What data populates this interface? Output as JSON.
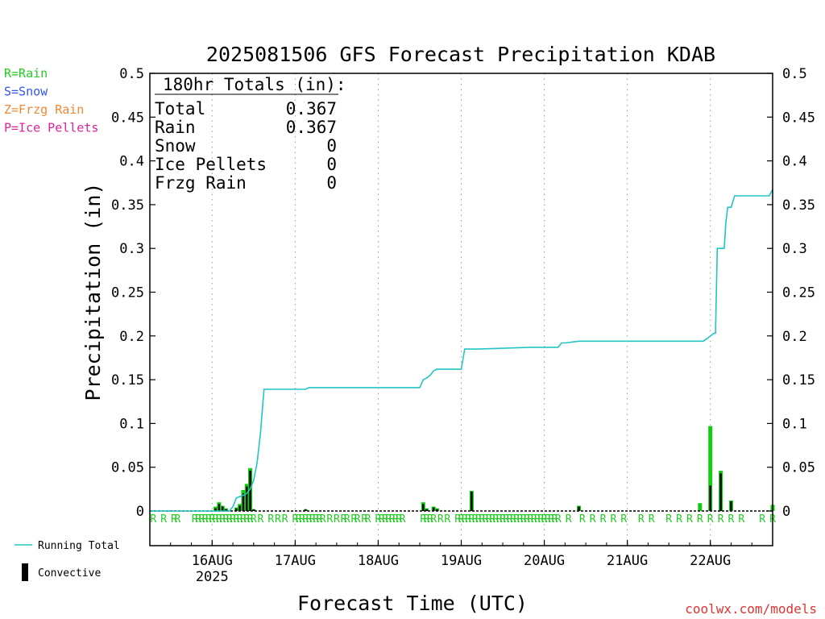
{
  "chart_data": {
    "type": "bar",
    "title": "2025081506 GFS Forecast Precipitation KDAB",
    "ylabel": "Precipitation (in)",
    "xlabel": "Forecast Time (UTC)",
    "ylim": [
      0,
      0.5
    ],
    "y_ticks": [
      "0",
      "0.05",
      "0.1",
      "0.15",
      "0.2",
      "0.25",
      "0.3",
      "0.35",
      "0.4",
      "0.45",
      "0.5"
    ],
    "x_range_hours": [
      0,
      180
    ],
    "x_tick_labels": [
      {
        "hour": 18,
        "label": "16AUG",
        "sublabel": "2025"
      },
      {
        "hour": 42,
        "label": "17AUG"
      },
      {
        "hour": 66,
        "label": "18AUG"
      },
      {
        "hour": 90,
        "label": "19AUG"
      },
      {
        "hour": 114,
        "label": "20AUG"
      },
      {
        "hour": 138,
        "label": "21AUG"
      },
      {
        "hour": 162,
        "label": "22AUG"
      }
    ],
    "grid": "vertical dotted at day boundaries",
    "ptype_legend": [
      {
        "label": "R=Rain",
        "color": "#22cc22"
      },
      {
        "label": "S=Snow",
        "color": "#3355ee"
      },
      {
        "label": "Z=Frzg Rain",
        "color": "#ee8833"
      },
      {
        "label": "P=Ice Pellets",
        "color": "#dd2299"
      }
    ],
    "totals": {
      "heading": "180hr Totals (in):",
      "rows": [
        {
          "label": "Total",
          "value": "0.367"
        },
        {
          "label": "Rain",
          "value": "0.367"
        },
        {
          "label": "Snow",
          "value": "0"
        },
        {
          "label": "Ice Pellets",
          "value": "0"
        },
        {
          "label": "Frzg Rain",
          "value": "0"
        }
      ]
    },
    "series": [
      {
        "name": "Running Total",
        "type": "line",
        "color": "#22c4c4",
        "x": [
          0,
          23,
          24,
          25,
          27,
          28,
          29,
          30,
          31,
          32,
          33,
          45,
          46,
          78,
          79,
          80,
          81,
          82,
          83,
          84,
          90,
          91,
          95,
          110,
          112,
          118,
          119,
          120,
          124,
          160,
          161,
          163,
          163.5,
          164,
          166,
          166.5,
          167,
          168,
          169,
          170,
          179,
          180
        ],
        "y": [
          0,
          0,
          0.005,
          0.015,
          0.018,
          0.02,
          0.025,
          0.035,
          0.055,
          0.09,
          0.139,
          0.139,
          0.141,
          0.141,
          0.15,
          0.152,
          0.155,
          0.16,
          0.162,
          0.162,
          0.162,
          0.185,
          0.185,
          0.187,
          0.187,
          0.187,
          0.192,
          0.192,
          0.194,
          0.194,
          0.197,
          0.203,
          0.203,
          0.3,
          0.3,
          0.33,
          0.347,
          0.347,
          0.36,
          0.36,
          0.36,
          0.367
        ]
      },
      {
        "name": "Total Precip",
        "type": "bar",
        "color": "#11cc11",
        "x": [
          19,
          20,
          21,
          22,
          25,
          26,
          27,
          28,
          29,
          30,
          45,
          79,
          80,
          82,
          83,
          93,
          124,
          159,
          162,
          165,
          168,
          180
        ],
        "y": [
          0.005,
          0.01,
          0.006,
          0.003,
          0.004,
          0.008,
          0.024,
          0.031,
          0.049,
          0.002,
          0.002,
          0.01,
          0.003,
          0.005,
          0.003,
          0.023,
          0.006,
          0.009,
          0.097,
          0.046,
          0.012,
          0.007
        ]
      },
      {
        "name": "Convective",
        "type": "bar",
        "color": "#000000",
        "x": [
          19,
          20,
          21,
          22,
          25,
          26,
          27,
          28,
          29,
          30,
          45,
          79,
          80,
          82,
          83,
          93,
          124,
          162,
          165,
          168
        ],
        "y": [
          0.003,
          0.008,
          0.005,
          0.002,
          0.003,
          0.006,
          0.02,
          0.028,
          0.046,
          0.002,
          0.002,
          0.008,
          0.002,
          0.004,
          0.002,
          0.022,
          0.005,
          0.029,
          0.043,
          0.011
        ]
      }
    ],
    "ptype_markers": {
      "symbol": "R",
      "x": [
        1,
        4,
        7,
        8,
        13,
        14,
        15,
        16,
        17,
        18,
        19,
        20,
        21,
        22,
        23,
        24,
        25,
        26,
        27,
        28,
        29,
        30,
        32,
        35,
        37,
        39,
        42,
        43,
        44,
        45,
        46,
        47,
        48,
        49,
        50,
        52,
        54,
        56,
        57,
        59,
        60,
        62,
        63,
        66,
        67,
        68,
        69,
        70,
        71,
        72,
        73,
        79,
        80,
        81,
        82,
        84,
        86,
        89,
        90,
        91,
        92,
        93,
        94,
        95,
        96,
        97,
        98,
        99,
        100,
        101,
        102,
        103,
        104,
        105,
        106,
        107,
        108,
        109,
        110,
        111,
        112,
        113,
        114,
        115,
        116,
        117,
        118,
        121,
        125,
        128,
        131,
        134,
        137,
        142,
        145,
        150,
        153,
        156,
        159,
        162,
        165,
        168,
        171,
        177,
        180
      ]
    },
    "bottom_legend": [
      {
        "label": "Running Total",
        "kind": "line",
        "color": "#22c4c4"
      },
      {
        "label": "Convective",
        "kind": "bar",
        "color": "#000000"
      }
    ],
    "credit": {
      "text": "coolwx.com/models",
      "color": "#dd3333"
    }
  }
}
